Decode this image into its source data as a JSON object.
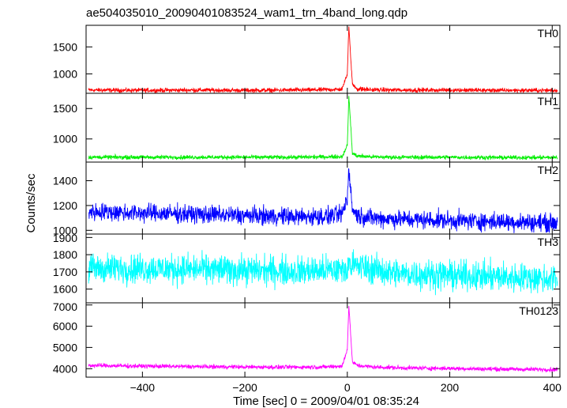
{
  "chart_data": {
    "type": "line",
    "title": "ae504035010_20090401083524_wam1_trn_4band_long.qdp",
    "xlabel": "Time [sec] 0 = 2009/04/01 08:35:24",
    "ylabel": "Counts/sec",
    "xlim": [
      -510,
      415
    ],
    "xticks": [
      -400,
      -200,
      0,
      200,
      400
    ],
    "grid": false,
    "panels": [
      {
        "name": "TH0",
        "color": "#ff0000",
        "ylim": [
          640,
          1900
        ],
        "yticks": [
          1000,
          1500
        ],
        "series": [
          {
            "x": [
              -500,
              -400,
              -300,
              -200,
              -100,
              -50,
              -10,
              0,
              3,
              6,
              10,
              20,
              50,
              100,
              200,
              300,
              400
            ],
            "y": [
              700,
              695,
              700,
              695,
              700,
              705,
              715,
              1000,
              1900,
              1400,
              800,
              720,
              705,
              700,
              700,
              695,
              695
            ]
          }
        ],
        "noise": 30
      },
      {
        "name": "TH1",
        "color": "#00ee00",
        "ylim": [
          620,
          1750
        ],
        "yticks": [
          1000,
          1500
        ],
        "series": [
          {
            "x": [
              -500,
              -400,
              -300,
              -200,
              -100,
              -50,
              -10,
              0,
              3,
              6,
              10,
              20,
              50,
              100,
              200,
              300,
              400
            ],
            "y": [
              700,
              700,
              700,
              700,
              700,
              705,
              710,
              900,
              1700,
              1300,
              760,
              720,
              705,
              700,
              700,
              695,
              695
            ]
          }
        ],
        "noise": 25
      },
      {
        "name": "TH2",
        "color": "#0000ff",
        "ylim": [
          970,
          1550
        ],
        "yticks": [
          1000,
          1200,
          1400
        ],
        "series": [
          {
            "x": [
              -500,
              -400,
              -300,
              -200,
              -100,
              -50,
              -10,
              0,
              3,
              6,
              10,
              20,
              50,
              100,
              200,
              300,
              400
            ],
            "y": [
              1150,
              1140,
              1130,
              1120,
              1110,
              1110,
              1130,
              1250,
              1500,
              1350,
              1170,
              1120,
              1100,
              1090,
              1080,
              1070,
              1060
            ]
          }
        ],
        "noise": 55
      },
      {
        "name": "TH3",
        "color": "#00ffff",
        "ylim": [
          1520,
          1920
        ],
        "yticks": [
          1600,
          1700,
          1800,
          1900
        ],
        "series": [
          {
            "x": [
              -500,
              -400,
              -300,
              -200,
              -100,
              0,
              3,
              6,
              100,
              200,
              300,
              400
            ],
            "y": [
              1720,
              1720,
              1715,
              1710,
              1705,
              1710,
              1780,
              1740,
              1690,
              1680,
              1670,
              1660
            ]
          }
        ],
        "noise": 65
      },
      {
        "name": "TH0123",
        "color": "#ff00ff",
        "ylim": [
          3600,
          7100
        ],
        "yticks": [
          4000,
          5000,
          6000,
          7000
        ],
        "series": [
          {
            "x": [
              -500,
              -400,
              -300,
              -200,
              -100,
              -50,
              -10,
              0,
              3,
              6,
              10,
              20,
              50,
              100,
              200,
              300,
              400
            ],
            "y": [
              4150,
              4120,
              4100,
              4080,
              4070,
              4080,
              4120,
              4900,
              7000,
              5800,
              4300,
              4150,
              4080,
              4040,
              4010,
              3980,
              3960
            ]
          }
        ],
        "noise": 75
      }
    ]
  }
}
